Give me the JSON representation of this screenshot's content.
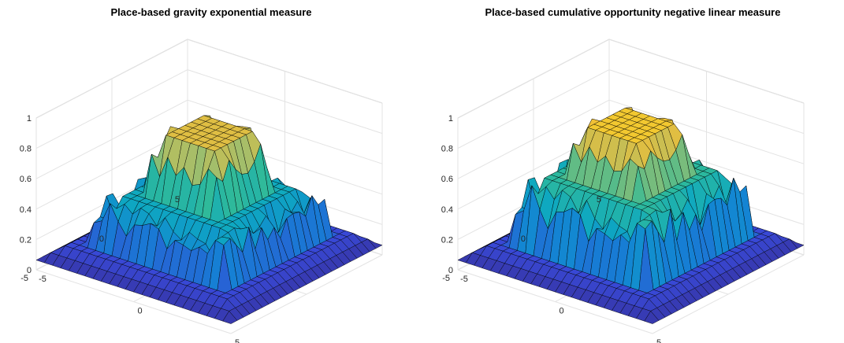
{
  "chart_data": [
    {
      "type": "surface",
      "title": "Place-based gravity exponential measure",
      "xlabel": "",
      "ylabel": "",
      "zlabel": "",
      "xlim": [
        -5,
        5
      ],
      "ylim": [
        -5,
        5
      ],
      "zlim": [
        0,
        1
      ],
      "x_ticks": [
        "-5",
        "0",
        "5"
      ],
      "y_ticks": [
        "-5",
        "0",
        "5"
      ],
      "z_ticks": [
        "0",
        "0.2",
        "0.4",
        "0.6",
        "0.8",
        "1"
      ],
      "grid": true,
      "colormap": "parula",
      "levels": {
        "outer": 0.15,
        "middle": 0.46,
        "inner": 0.85
      },
      "region_half_width": {
        "middle": 3.0,
        "inner": 1.5
      }
    },
    {
      "type": "surface",
      "title": "Place-based cumulative opportunity negative linear measure",
      "xlabel": "",
      "ylabel": "",
      "zlabel": "",
      "xlim": [
        -5,
        5
      ],
      "ylim": [
        -5,
        5
      ],
      "zlim": [
        0,
        1
      ],
      "x_ticks": [
        "-5",
        "0",
        "5"
      ],
      "y_ticks": [
        "-5",
        "0",
        "5"
      ],
      "z_ticks": [
        "0",
        "0.2",
        "0.4",
        "0.6",
        "0.8",
        "1"
      ],
      "grid": true,
      "colormap": "parula",
      "levels": {
        "outer": 0.15,
        "middle": 0.58,
        "inner": 0.9
      },
      "region_half_width": {
        "middle": 3.0,
        "inner": 1.5
      }
    }
  ]
}
